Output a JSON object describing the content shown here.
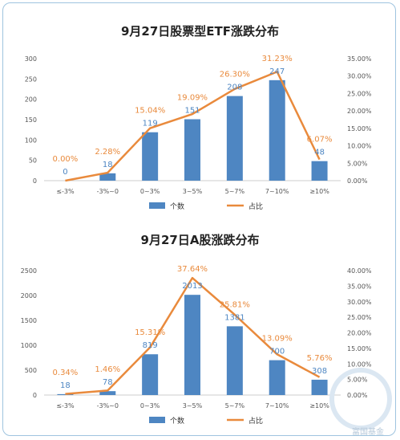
{
  "colors": {
    "bar": "#4e86c2",
    "line": "#e98a3c",
    "bar_label": "#4e86c2",
    "line_label": "#e98a3c",
    "axis_text": "#555555"
  },
  "watermark": {
    "text": "富国基金"
  },
  "chart_data": [
    {
      "type": "bar",
      "title": "9月27日股票型ETF涨跌分布",
      "categories": [
        "≤-3%",
        "-3%~0",
        "0~3%",
        "3~5%",
        "5~7%",
        "7~10%",
        "≥10%"
      ],
      "series": [
        {
          "name": "个数",
          "type": "bar",
          "axis": "left",
          "values": [
            0,
            18,
            119,
            151,
            208,
            247,
            48
          ],
          "labels": [
            "0",
            "18",
            "119",
            "151",
            "208",
            "247",
            "48"
          ]
        },
        {
          "name": "占比",
          "type": "line",
          "axis": "right",
          "values": [
            0.0,
            2.28,
            15.04,
            19.09,
            26.3,
            31.23,
            6.07
          ],
          "labels": [
            "0.00%",
            "2.28%",
            "15.04%",
            "19.09%",
            "26.30%",
            "31.23%",
            "6.07%"
          ]
        }
      ],
      "ylim": [
        0,
        300
      ],
      "yticks": [
        "0",
        "50",
        "100",
        "150",
        "200",
        "250",
        "300"
      ],
      "y2lim": [
        0,
        35
      ],
      "y2ticks": [
        "0.00%",
        "5.00%",
        "10.00%",
        "15.00%",
        "20.00%",
        "25.00%",
        "30.00%",
        "35.00%"
      ],
      "legend": "bottom"
    },
    {
      "type": "bar",
      "title": "9月27日A股涨跌分布",
      "categories": [
        "≤-3%",
        "-3%~0",
        "0~3%",
        "3~5%",
        "5~7%",
        "7~10%",
        "≥10%"
      ],
      "series": [
        {
          "name": "个数",
          "type": "bar",
          "axis": "left",
          "values": [
            18,
            78,
            819,
            2013,
            1381,
            700,
            308
          ],
          "labels": [
            "18",
            "78",
            "819",
            "2013",
            "1381",
            "700",
            "308"
          ]
        },
        {
          "name": "占比",
          "type": "line",
          "axis": "right",
          "values": [
            0.34,
            1.46,
            15.31,
            37.64,
            25.81,
            13.09,
            5.76
          ],
          "labels": [
            "0.34%",
            "1.46%",
            "15.31%",
            "37.64%",
            "25.81%",
            "13.09%",
            "5.76%"
          ]
        }
      ],
      "ylim": [
        0,
        2500
      ],
      "yticks": [
        "0",
        "500",
        "1000",
        "1500",
        "2000",
        "2500"
      ],
      "y2lim": [
        0,
        40
      ],
      "y2ticks": [
        "0.00%",
        "5.00%",
        "10.00%",
        "15.00%",
        "20.00%",
        "25.00%",
        "30.00%",
        "35.00%",
        "40.00%"
      ],
      "legend": "bottom"
    }
  ]
}
